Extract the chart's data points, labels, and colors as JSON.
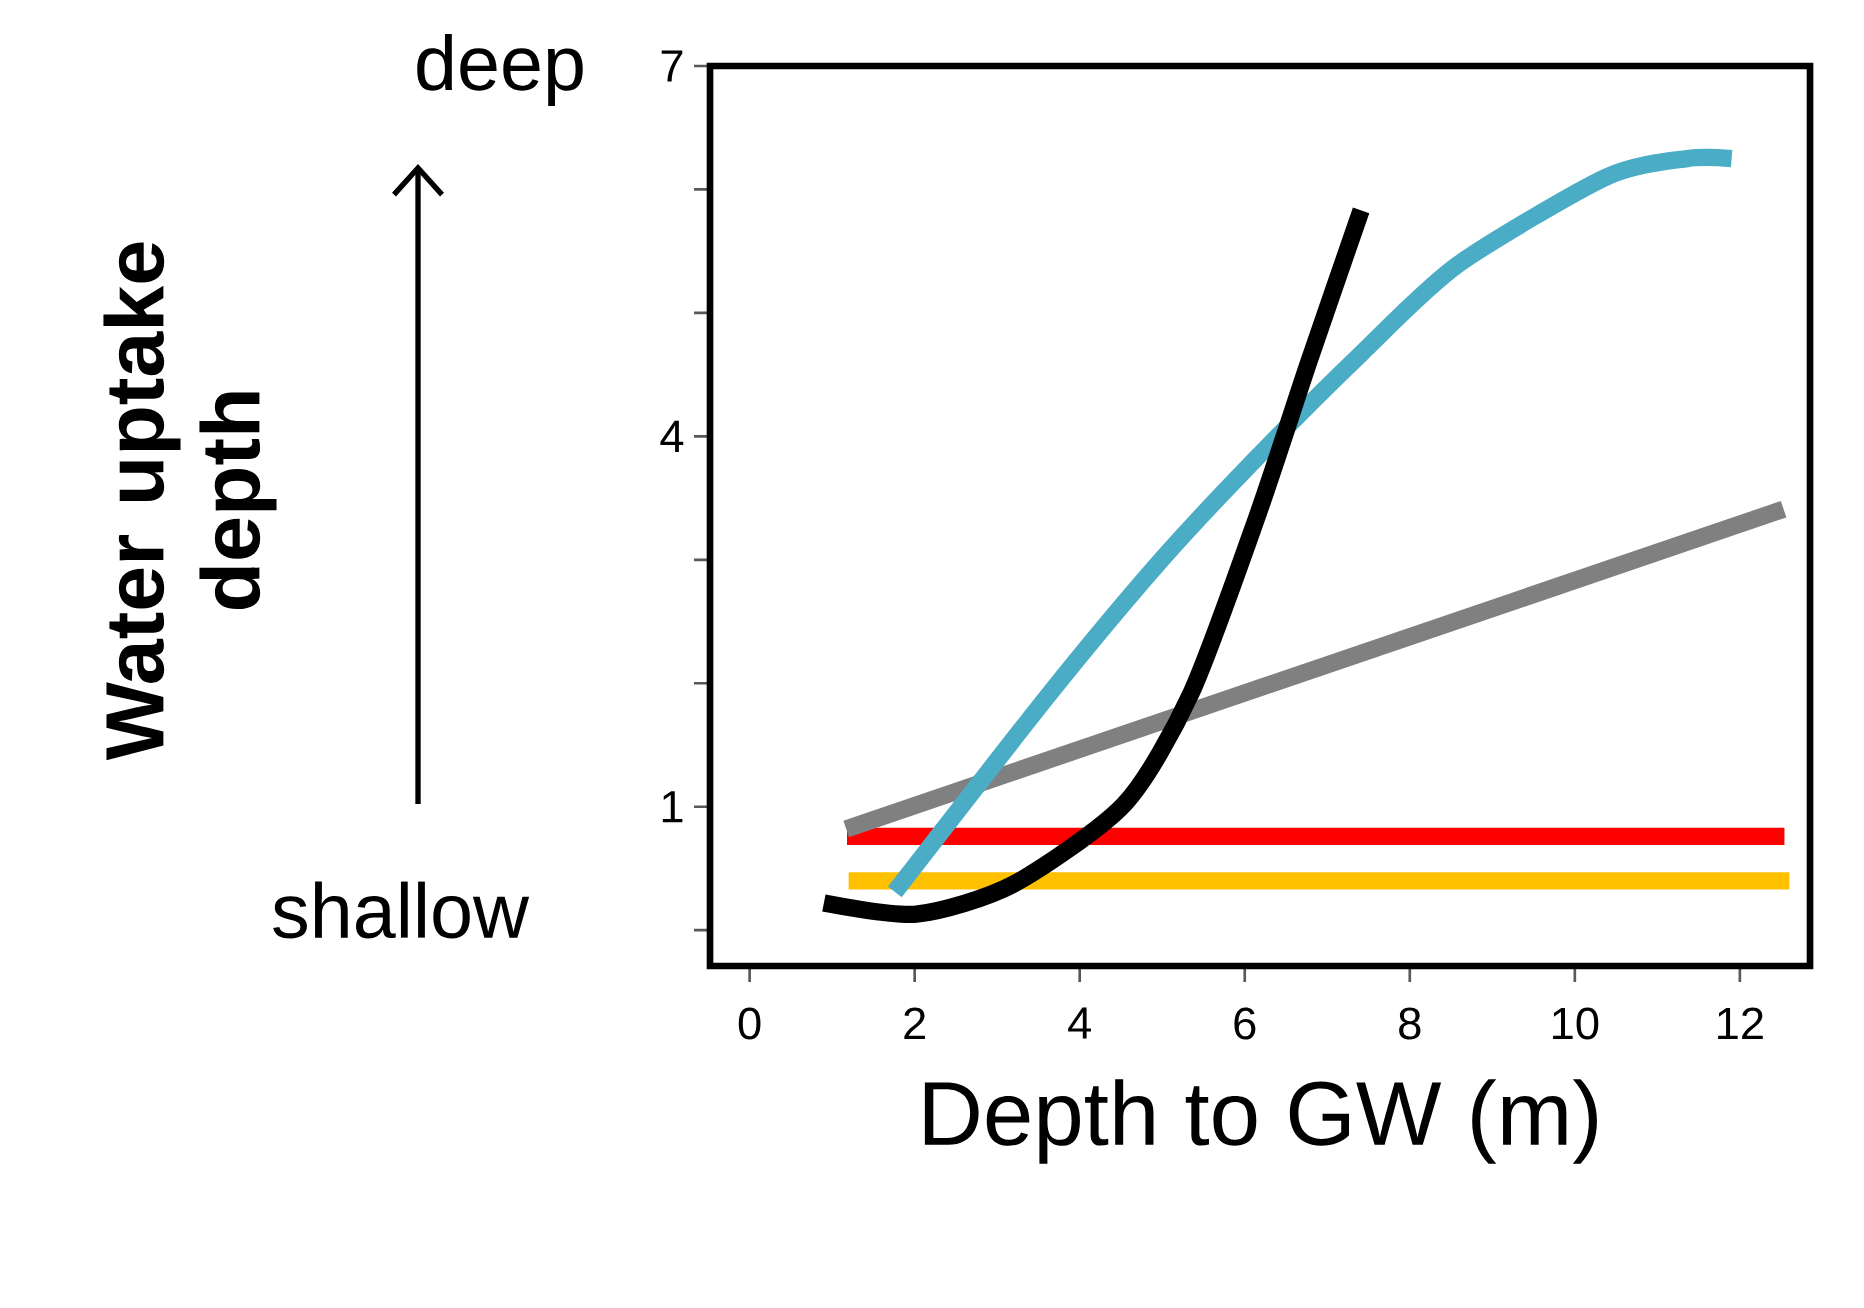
{
  "chart_data": {
    "type": "line",
    "xlabel": "Depth to GW (m)",
    "ylabel": "Water uptake depth",
    "annotations": [
      "deep",
      "shallow"
    ],
    "series": [
      {
        "color": "#ffc000",
        "x": [
          1.2,
          12.6
        ],
        "values": [
          0.4,
          0.4
        ]
      },
      {
        "color": "#ff0000",
        "x": [
          1.18,
          12.54
        ],
        "values": [
          0.76,
          0.76
        ]
      },
      {
        "color": "#808080",
        "x": [
          1.17,
          12.53
        ],
        "values": [
          0.82,
          3.41
        ]
      },
      {
        "color": "#4bacc6",
        "x": [
          1.76,
          3.64,
          4.99,
          6.15,
          7.41,
          8.58,
          10.38,
          11.36,
          11.9
        ],
        "values": [
          0.31,
          1.92,
          3.0,
          3.83,
          4.67,
          5.39,
          6.1,
          6.25,
          6.25
        ]
      },
      {
        "color": "#000000",
        "x": [
          0.9,
          2.02,
          3.19,
          4.54,
          5.35,
          6.15,
          6.78,
          7.41
        ],
        "values": [
          0.22,
          0.13,
          0.37,
          1.02,
          1.92,
          3.35,
          4.61,
          5.83
        ]
      }
    ],
    "xlim": [
      -0.48,
      12.85
    ],
    "ylim": [
      -0.29,
      7
    ],
    "xticks": [
      0,
      2,
      4,
      6,
      8,
      10,
      12
    ],
    "yticks": [
      {
        "value": 0,
        "label": null
      },
      1,
      {
        "value": 2,
        "label": null
      },
      {
        "value": 3,
        "label": null
      },
      4,
      {
        "value": 5,
        "label": null
      },
      {
        "value": 6,
        "label": null
      },
      7
    ],
    "grid": false,
    "legend": false,
    "marker": "none",
    "line_style": "solid"
  }
}
